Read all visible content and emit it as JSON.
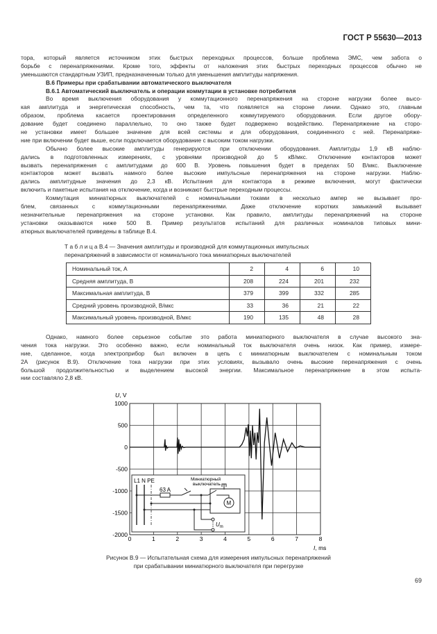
{
  "header": {
    "doc_id": "ГОСТ Р 55630—2013"
  },
  "body1": [
    {
      "text": "тора, который является источником этих быстрых переходных процессов, больше проблема ЭМС, чем забота о",
      "style": ""
    },
    {
      "text": "борьбе с перенапряжениями. Кроме того, эффекты от наложения этих быстрых переходных процессов обычно не",
      "style": ""
    },
    {
      "text": "уменьшаются стандартным УЗИП, предназначенным только для уменьшения амплитуды напряжения.",
      "style": "last"
    },
    {
      "text": "В.6 Примеры при срабатывании автоматического выключателя",
      "style": "ind bold last"
    },
    {
      "text": "В.6.1 Автоматический выключатель и операции коммутации в установке потребителя",
      "style": "ind bold last"
    },
    {
      "text": "Во время выключения оборудования у коммутационного перенапряжения на стороне нагрузки более высо-",
      "style": "ind"
    },
    {
      "text": "кая амплитуда и энергетическая способность, чем та, что появляется на стороне линии. Однако это, главным",
      "style": ""
    },
    {
      "text": "образом, проблема касается проектирования определенного коммутируемого оборудования. Если другое обору-",
      "style": ""
    },
    {
      "text": "дование будет соединено параллельно, то оно также будет подвержено воздействию. Перенапряжение на сторо-",
      "style": ""
    },
    {
      "text": "не установки имеет большее значение для всей системы и для оборудования, соединенного с ней. Перенапряже-",
      "style": ""
    },
    {
      "text": "ние при включении будет выше, если подключается оборудование с высоким током нагрузки.",
      "style": "last"
    },
    {
      "text": "Обычно более высокие амплитуды генерируются при отключении оборудования. Амплитуды 1,9 кВ наблю-",
      "style": "ind"
    },
    {
      "text": "дались в подготовленных измерениях, с уровнями производной до 5 кВ/мкс. Отключение контакторов может",
      "style": ""
    },
    {
      "text": "вызвать перенапряжения с амплитудами до 600 В. Уровень повышения будет в пределах 50 В/мкс. Выключение",
      "style": ""
    },
    {
      "text": "контакторов может вызвать намного более высокие импульсные перенапряжения на стороне нагрузки. Наблю-",
      "style": ""
    },
    {
      "text": "дались амплитудные значения до 2,3 кВ. Испытания для контактора  в режиме включения, могут фактически",
      "style": ""
    },
    {
      "text": "включить и пакетные испытания на отключение, когда и возникают быстрые переходным процессы.",
      "style": "last"
    },
    {
      "text": "Коммутация миниатюрных выключателей с номинальными токами в несколько ампер не вызывает про-",
      "style": "ind"
    },
    {
      "text": "блем, связанных с  коммутационными перенапряжениями. Даже отключение коротких замыканий вызывает",
      "style": ""
    },
    {
      "text": "незначительные перенапряжения на стороне установки. Как правило, амплитуды перенапряжений на стороне",
      "style": ""
    },
    {
      "text": "установки оказываются ниже 500 В. Пример результатов испытаний для различных номиналов типовых мини-",
      "style": ""
    },
    {
      "text": "атюрных выключателей приведены в таблице В.4.",
      "style": "last"
    }
  ],
  "table": {
    "caption_line1": "Т а б л и ц а  В.4 — Значения амплитуды и производной  для  коммутационных  импульсных",
    "caption_line2": "перенапряжений в зависимости от номинального тока миниатюрных выключателей",
    "rows": [
      {
        "label": "Номинальный ток, А",
        "values": [
          "2",
          "4",
          "6",
          "10"
        ]
      },
      {
        "label": "Средняя амплитуда, В",
        "values": [
          "208",
          "224",
          "201",
          "232"
        ]
      },
      {
        "label": "Максимальная амплитуда, В",
        "values": [
          "379",
          "399",
          "332",
          "285"
        ]
      },
      {
        "label": "Средний уровень производной, В/мкс",
        "values": [
          "33",
          "36",
          "21",
          "22"
        ]
      },
      {
        "label": "Максимальный уровень производной, В/мкс",
        "values": [
          "190",
          "135",
          "48",
          "28"
        ]
      }
    ]
  },
  "body2": [
    {
      "text": "Однако, намного более серьезное событие это работа миниатюрного выключателя в случае высокого зна-",
      "style": "ind"
    },
    {
      "text": "чения тока нагрузки. Это особенно важно, если номинальный ток выключателя очень низок. Как пример, измере-",
      "style": ""
    },
    {
      "text": "ние, сделанное, когда электроприбор был включен в цепь с миниатюрным выключателем с номинальным током",
      "style": ""
    },
    {
      "text": "2А (рисунок В.9). Отключение тока нагрузки при этих условиях, вызывало очень высокие перенапряжения с очень",
      "style": ""
    },
    {
      "text": "большой продолжительностью и выделением высокой энергии. Максимальное перенапряжение в этом испыта-",
      "style": ""
    },
    {
      "text": "нии составляло 2,8 кВ.",
      "style": "last"
    }
  ],
  "chart_data": {
    "type": "line",
    "ylabel": "U, V",
    "xlabel": "I, ms",
    "xlim": [
      0,
      8
    ],
    "ylim": [
      -2000,
      1000
    ],
    "x_ticks": [
      "0",
      "1",
      "2",
      "3",
      "4",
      "5",
      "6",
      "7",
      "8"
    ],
    "y_ticks": [
      "1000",
      "500",
      "0",
      "-500",
      "-1000",
      "-1500",
      "-2000"
    ],
    "grid": true,
    "series": [
      {
        "x": [
          0,
          1.45,
          1.48,
          1.5,
          1.53,
          1.57,
          1.62,
          1.98,
          2.0,
          2.03,
          2.06,
          2.09,
          2.12,
          2.16,
          2.2,
          2.26,
          2.35,
          4.6,
          4.7,
          4.8,
          4.88,
          4.93,
          4.97,
          5.02,
          5.06,
          5.1,
          5.15,
          5.2,
          5.25,
          5.3,
          5.35,
          5.4,
          5.45,
          5.55,
          5.65,
          5.75,
          5.85,
          5.95,
          6.1,
          6.28,
          6.45,
          6.62,
          6.8,
          6.95,
          7.15,
          7.35,
          8
        ],
        "y": [
          0,
          0,
          180,
          -80,
          40,
          -20,
          0,
          0,
          220,
          -150,
          180,
          -100,
          80,
          -40,
          20,
          -10,
          0,
          0,
          60,
          180,
          450,
          250,
          520,
          -200,
          380,
          -250,
          500,
          50,
          330,
          -280,
          340,
          100,
          880,
          -1650,
          100,
          680,
          100,
          -420,
          330,
          -250,
          180,
          -100,
          100,
          -20,
          30,
          0,
          0
        ]
      }
    ],
    "inset": {
      "lines_label": "L1 N PE",
      "fuse_label": "63 A",
      "breaker_label_1": "Миниатюрный",
      "breaker_label_2": "выключатель",
      "motor_label": "M",
      "meter_label": "U",
      "meter_sub": "m"
    }
  },
  "figure": {
    "caption_line1": "Рисунок В.9 — Испытательная схема для измерения импульсных перенапряжений",
    "caption_line2": "при срабатывании миниатюрного выключателя при перегрузке"
  },
  "page_number": "69"
}
